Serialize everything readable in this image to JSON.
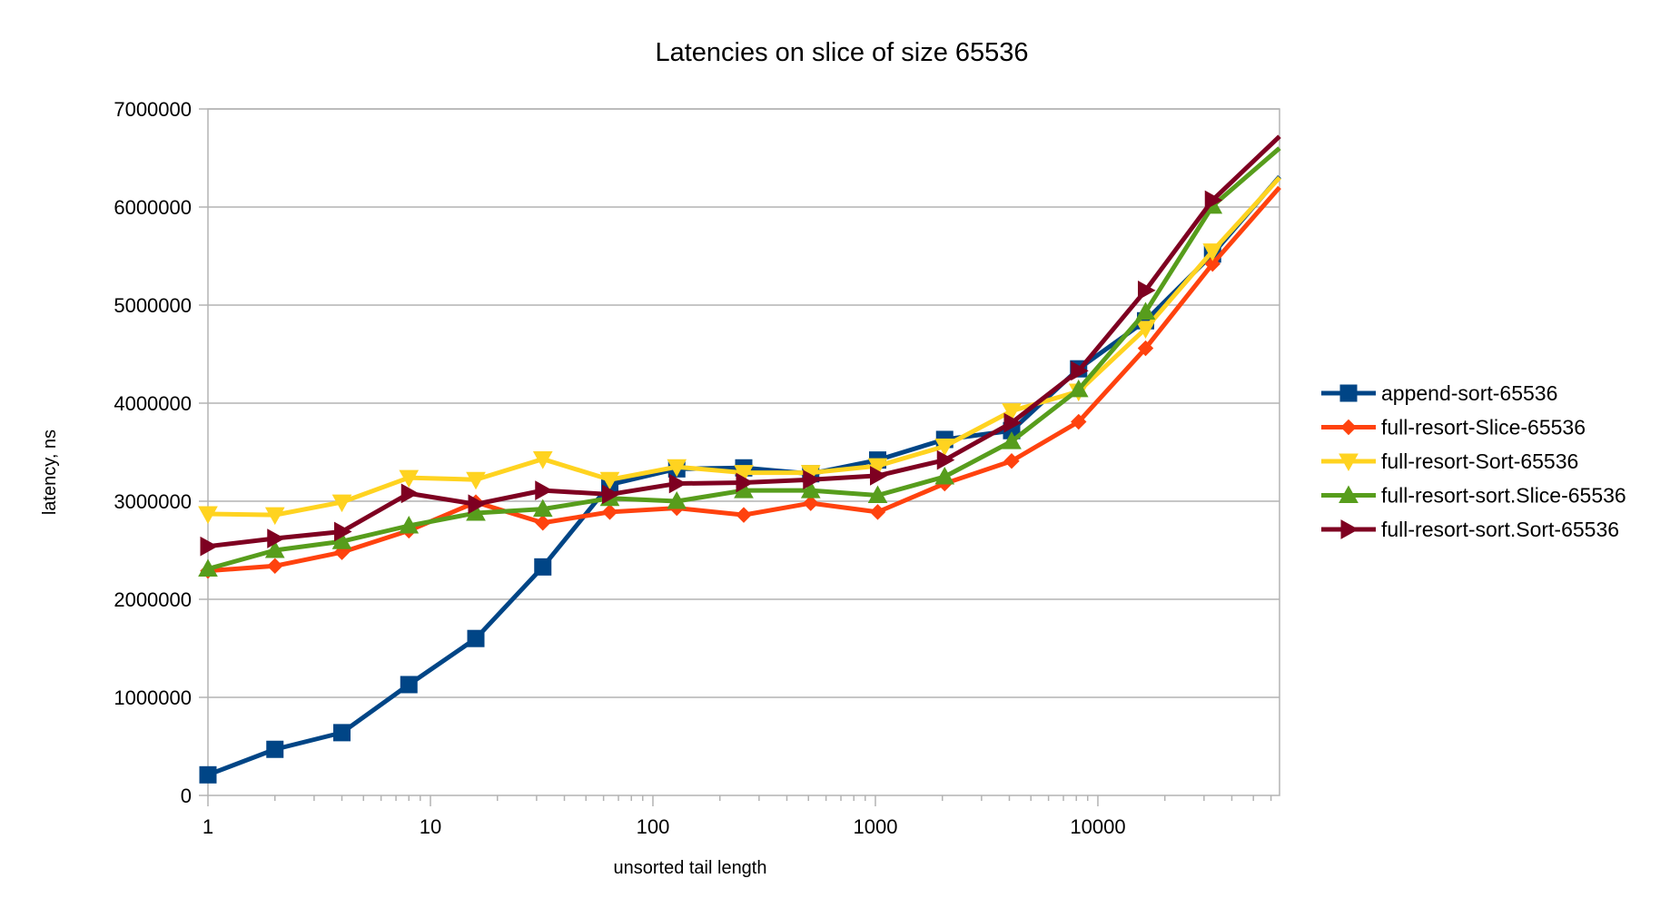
{
  "chart_data": {
    "type": "line",
    "title": "Latencies on slice of size 65536",
    "xlabel": "unsorted tail length",
    "ylabel": "latency, ns",
    "x_scale": "log",
    "xlim": [
      1,
      65536
    ],
    "ylim": [
      0,
      7000000
    ],
    "grid": true,
    "legend_position": "right",
    "x_ticks": [
      "1",
      "10",
      "100",
      "1000",
      "10000"
    ],
    "y_ticks": [
      "0",
      "1000000",
      "2000000",
      "3000000",
      "4000000",
      "5000000",
      "6000000",
      "7000000"
    ],
    "x": [
      1,
      2,
      4,
      8,
      16,
      32,
      64,
      128,
      256,
      512,
      1024,
      2048,
      4096,
      8192,
      16384,
      32768,
      65536
    ],
    "series": [
      {
        "name": "append-sort-65536",
        "color": "#004586",
        "marker": "square",
        "values": [
          210000,
          470000,
          640000,
          1130000,
          1600000,
          2330000,
          3170000,
          3330000,
          3340000,
          3280000,
          3420000,
          3630000,
          3720000,
          4350000,
          4840000,
          5520000,
          6310000
        ]
      },
      {
        "name": "full-resort-Slice-65536",
        "color": "#ff420e",
        "marker": "diamond",
        "values": [
          2290000,
          2340000,
          2480000,
          2700000,
          2990000,
          2780000,
          2890000,
          2930000,
          2860000,
          2980000,
          2890000,
          3180000,
          3410000,
          3810000,
          4560000,
          5420000,
          6200000
        ]
      },
      {
        "name": "full-resort-Sort-65536",
        "color": "#ffd320",
        "marker": "triangle-down",
        "values": [
          2870000,
          2860000,
          2990000,
          3240000,
          3220000,
          3430000,
          3220000,
          3350000,
          3290000,
          3290000,
          3360000,
          3560000,
          3920000,
          4120000,
          4760000,
          5550000,
          6300000
        ]
      },
      {
        "name": "full-resort-sort.Slice-65536",
        "color": "#579d1c",
        "marker": "triangle-up",
        "values": [
          2310000,
          2500000,
          2590000,
          2750000,
          2880000,
          2920000,
          3030000,
          3000000,
          3110000,
          3110000,
          3060000,
          3250000,
          3610000,
          4140000,
          4930000,
          6010000,
          6600000
        ]
      },
      {
        "name": "full-resort-sort.Sort-65536",
        "color": "#7e0021",
        "marker": "triangle-right",
        "values": [
          2540000,
          2620000,
          2690000,
          3080000,
          2970000,
          3110000,
          3070000,
          3180000,
          3190000,
          3220000,
          3260000,
          3420000,
          3800000,
          4330000,
          5150000,
          6070000,
          6720000
        ]
      }
    ]
  }
}
